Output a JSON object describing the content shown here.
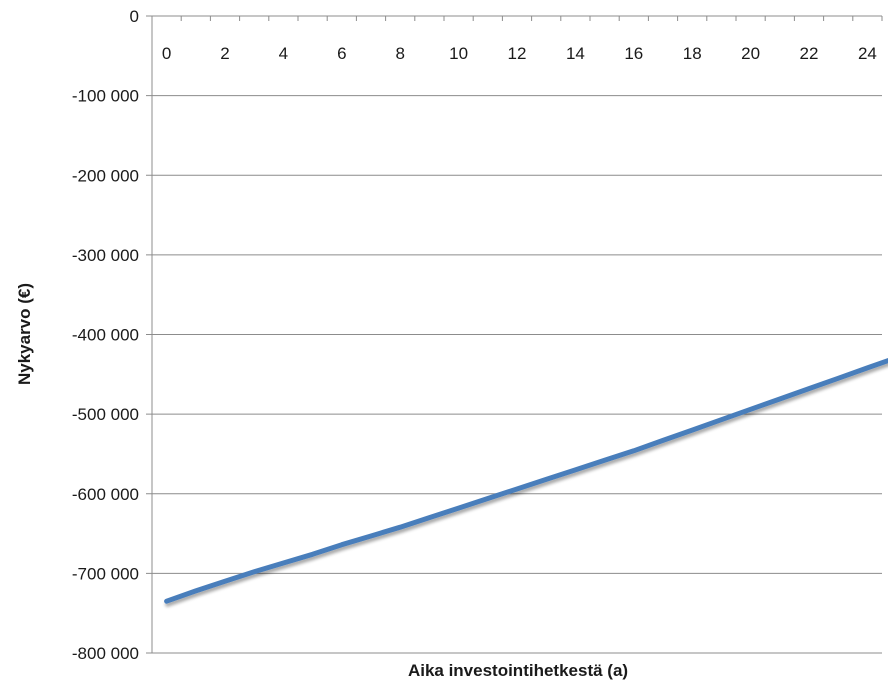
{
  "chart_data": {
    "type": "line",
    "title": "",
    "xlabel": "Aika investointihetkestä (a)",
    "ylabel": "Nykyarvo (€)",
    "xlim": [
      0,
      25
    ],
    "ylim": [
      -800000,
      0
    ],
    "x_ticks": [
      0,
      2,
      4,
      6,
      8,
      10,
      12,
      14,
      16,
      18,
      20,
      22,
      24
    ],
    "y_ticks": [
      0,
      -100000,
      -200000,
      -300000,
      -400000,
      -500000,
      -600000,
      -700000,
      -800000
    ],
    "y_tick_labels": [
      "0",
      "-100 000",
      "-200 000",
      "-300 000",
      "-400 000",
      "-500 000",
      "-600 000",
      "-700 000",
      "-800 000"
    ],
    "grid": "horizontal",
    "x_axis_position": "top",
    "legend": "none",
    "colors": {
      "series": "#4a7ebb",
      "grid": "#8c8c8c",
      "axis": "#8c8c8c"
    },
    "series": [
      {
        "x": [
          0,
          1,
          2,
          3,
          4,
          5,
          6,
          7,
          8,
          9,
          10,
          11,
          12,
          13,
          14,
          15,
          16,
          17,
          18,
          19,
          20,
          21,
          22,
          23,
          24,
          25
        ],
        "values": [
          -735000,
          -722000,
          -710000,
          -698000,
          -687000,
          -676000,
          -664000,
          -653000,
          -642000,
          -630000,
          -618000,
          -606000,
          -594000,
          -582000,
          -570000,
          -558000,
          -546000,
          -533000,
          -520000,
          -507000,
          -494000,
          -481000,
          -468000,
          -455000,
          -442000,
          -429000
        ]
      }
    ]
  }
}
